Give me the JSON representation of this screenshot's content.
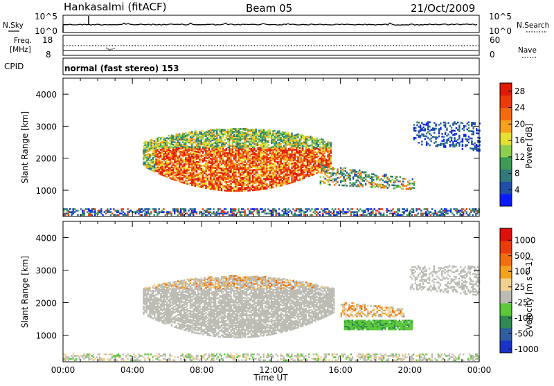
{
  "header": {
    "station": "Hankasalmi (fitACF)",
    "beam": "Beam 05",
    "date": "21/Oct/2009"
  },
  "strips": {
    "nsky_label": "N.Sky",
    "nsearch_label": "N.Search",
    "noise_ticks": [
      "10^5",
      "10^0"
    ],
    "freq_label": "Freq.",
    "freq_unit": "[MHz]",
    "freq_ticks": [
      "18",
      "8"
    ],
    "nave_label": "Nave",
    "nave_ticks": [
      "60",
      "0"
    ],
    "cpid_label": "CPID",
    "cpid_value": "normal (fast stereo) 153"
  },
  "colors": {
    "power": [
      "#0a1cff",
      "#1f4fa8",
      "#2f7a7a",
      "#3f9a55",
      "#8fcf4f",
      "#e8e030",
      "#f6a21e",
      "#f46a10",
      "#ee3a0a",
      "#e01a06"
    ],
    "velocity": [
      "#1932c8",
      "#2f5da0",
      "#2e8a52",
      "#5cc83a",
      "#bcbcb4",
      "#f2d090",
      "#f4a21e",
      "#f07010",
      "#e83c0a",
      "#e0100a"
    ],
    "ground_scatter": "#bcbcb4"
  },
  "chart_data": [
    {
      "type": "heatmap",
      "name": "power",
      "ylabel": "Slant Range [km]",
      "yticks": [
        "4000",
        "3000",
        "2000",
        "1000"
      ],
      "ylim": [
        180,
        4500
      ],
      "xticks": [
        "00:00",
        "04:00",
        "08:00",
        "12:00",
        "16:00",
        "20:00",
        "00:00"
      ],
      "xlim": [
        0,
        24
      ],
      "colorbar_label": "Power [dB]",
      "colorbar_ticks": [
        "28",
        "24",
        "20",
        "16",
        "12",
        "8",
        "4"
      ],
      "colorbar_range": [
        0,
        30
      ]
    },
    {
      "type": "heatmap",
      "name": "velocity",
      "ylabel": "Slant Range [km]",
      "yticks": [
        "4000",
        "3000",
        "2000",
        "1000"
      ],
      "ylim": [
        180,
        4500
      ],
      "xticks": [
        "00:00",
        "04:00",
        "08:00",
        "12:00",
        "16:00",
        "20:00",
        "00:00"
      ],
      "xlabel": "Time UT",
      "xlim": [
        0,
        24
      ],
      "colorbar_label": "Velocity [m s^-1]",
      "colorbar_ticks": [
        "1000",
        "500",
        "100",
        "25",
        "-25",
        "-100",
        "-500",
        "-1000"
      ]
    }
  ]
}
